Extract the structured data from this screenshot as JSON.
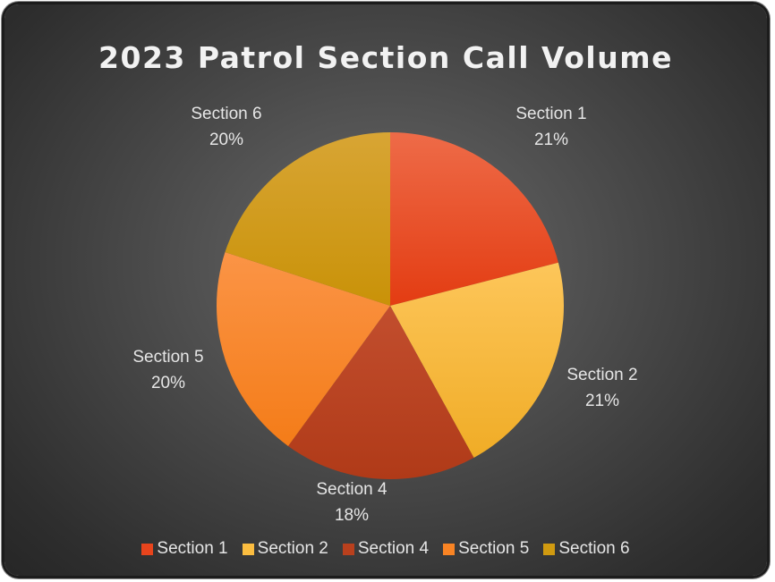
{
  "chart_data": {
    "type": "pie",
    "title": "2023 Patrol Section Call Volume",
    "slices": [
      {
        "name": "Section 1",
        "value": 21,
        "label": "21%",
        "color": "#e8441c"
      },
      {
        "name": "Section 2",
        "value": 21,
        "label": "21%",
        "color": "#fbbd40"
      },
      {
        "name": "Section 4",
        "value": 18,
        "label": "18%",
        "color": "#b9401d"
      },
      {
        "name": "Section 5",
        "value": 20,
        "label": "20%",
        "color": "#f98424"
      },
      {
        "name": "Section 6",
        "value": 20,
        "label": "20%",
        "color": "#d09a10"
      }
    ],
    "legend_position": "bottom"
  }
}
